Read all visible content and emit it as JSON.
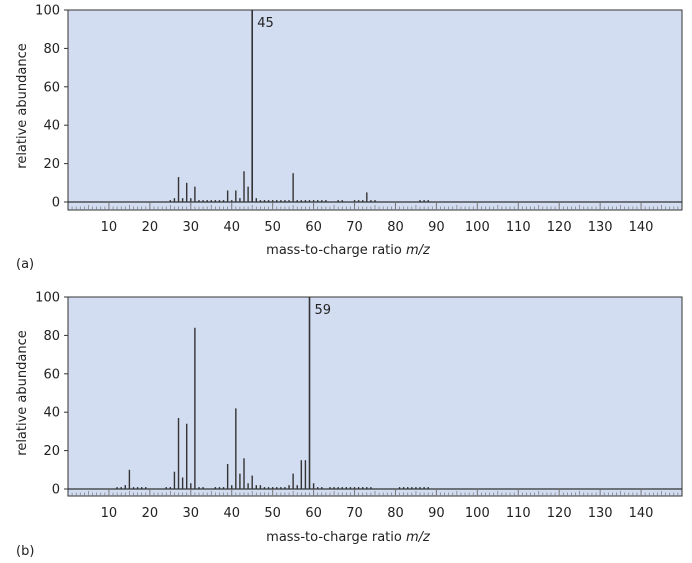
{
  "chart_data": [
    {
      "type": "bar",
      "panel_label": "(a)",
      "ylabel": "relative abundance",
      "xlabel_prefix": "mass-to-charge ratio ",
      "xlabel_var": "m/z",
      "ylim": [
        0,
        100
      ],
      "xlim": [
        0,
        150
      ],
      "y_ticks": [
        "0",
        "20",
        "40",
        "60",
        "80",
        "100"
      ],
      "x_ticks": [
        "10",
        "20",
        "30",
        "40",
        "50",
        "60",
        "70",
        "80",
        "90",
        "100",
        "110",
        "120",
        "130",
        "140"
      ],
      "base_peak_label": "45",
      "base_peak_mz": 45,
      "grid": false,
      "colors": {
        "background": "#d3ddf1",
        "line": "#333333"
      },
      "peaks": [
        {
          "mz": 25,
          "value": 1
        },
        {
          "mz": 26,
          "value": 2
        },
        {
          "mz": 27,
          "value": 13
        },
        {
          "mz": 28,
          "value": 2
        },
        {
          "mz": 29,
          "value": 10
        },
        {
          "mz": 30,
          "value": 2
        },
        {
          "mz": 31,
          "value": 8
        },
        {
          "mz": 32,
          "value": 1
        },
        {
          "mz": 33,
          "value": 1
        },
        {
          "mz": 34,
          "value": 1
        },
        {
          "mz": 35,
          "value": 1
        },
        {
          "mz": 36,
          "value": 1
        },
        {
          "mz": 37,
          "value": 1
        },
        {
          "mz": 38,
          "value": 1
        },
        {
          "mz": 39,
          "value": 6
        },
        {
          "mz": 40,
          "value": 1
        },
        {
          "mz": 41,
          "value": 6
        },
        {
          "mz": 42,
          "value": 2
        },
        {
          "mz": 43,
          "value": 16
        },
        {
          "mz": 44,
          "value": 8
        },
        {
          "mz": 45,
          "value": 100
        },
        {
          "mz": 46,
          "value": 2
        },
        {
          "mz": 47,
          "value": 1
        },
        {
          "mz": 48,
          "value": 1
        },
        {
          "mz": 49,
          "value": 1
        },
        {
          "mz": 50,
          "value": 1
        },
        {
          "mz": 51,
          "value": 1
        },
        {
          "mz": 52,
          "value": 1
        },
        {
          "mz": 53,
          "value": 1
        },
        {
          "mz": 54,
          "value": 1
        },
        {
          "mz": 55,
          "value": 15
        },
        {
          "mz": 56,
          "value": 1
        },
        {
          "mz": 57,
          "value": 1
        },
        {
          "mz": 58,
          "value": 1
        },
        {
          "mz": 59,
          "value": 1
        },
        {
          "mz": 60,
          "value": 1
        },
        {
          "mz": 61,
          "value": 1
        },
        {
          "mz": 62,
          "value": 1
        },
        {
          "mz": 63,
          "value": 1
        },
        {
          "mz": 66,
          "value": 1
        },
        {
          "mz": 67,
          "value": 1
        },
        {
          "mz": 70,
          "value": 1
        },
        {
          "mz": 71,
          "value": 1
        },
        {
          "mz": 72,
          "value": 1
        },
        {
          "mz": 73,
          "value": 5
        },
        {
          "mz": 74,
          "value": 1
        },
        {
          "mz": 75,
          "value": 1
        },
        {
          "mz": 86,
          "value": 1
        },
        {
          "mz": 87,
          "value": 1
        },
        {
          "mz": 88,
          "value": 1
        }
      ]
    },
    {
      "type": "bar",
      "panel_label": "(b)",
      "ylabel": "relative abundance",
      "xlabel_prefix": "mass-to-charge ratio ",
      "xlabel_var": "m/z",
      "ylim": [
        0,
        100
      ],
      "xlim": [
        0,
        150
      ],
      "y_ticks": [
        "0",
        "20",
        "40",
        "60",
        "80",
        "100"
      ],
      "x_ticks": [
        "10",
        "20",
        "30",
        "40",
        "50",
        "60",
        "70",
        "80",
        "90",
        "100",
        "110",
        "120",
        "130",
        "140"
      ],
      "base_peak_label": "59",
      "base_peak_mz": 59,
      "grid": false,
      "colors": {
        "background": "#d3ddf1",
        "line": "#333333"
      },
      "peaks": [
        {
          "mz": 12,
          "value": 1
        },
        {
          "mz": 13,
          "value": 1
        },
        {
          "mz": 14,
          "value": 2
        },
        {
          "mz": 15,
          "value": 10
        },
        {
          "mz": 16,
          "value": 1
        },
        {
          "mz": 17,
          "value": 1
        },
        {
          "mz": 18,
          "value": 1
        },
        {
          "mz": 19,
          "value": 1
        },
        {
          "mz": 24,
          "value": 1
        },
        {
          "mz": 25,
          "value": 1
        },
        {
          "mz": 26,
          "value": 9
        },
        {
          "mz": 27,
          "value": 37
        },
        {
          "mz": 28,
          "value": 6
        },
        {
          "mz": 29,
          "value": 34
        },
        {
          "mz": 30,
          "value": 3
        },
        {
          "mz": 31,
          "value": 84
        },
        {
          "mz": 32,
          "value": 1
        },
        {
          "mz": 33,
          "value": 1
        },
        {
          "mz": 36,
          "value": 1
        },
        {
          "mz": 37,
          "value": 1
        },
        {
          "mz": 38,
          "value": 1
        },
        {
          "mz": 39,
          "value": 13
        },
        {
          "mz": 40,
          "value": 2
        },
        {
          "mz": 41,
          "value": 42
        },
        {
          "mz": 42,
          "value": 8
        },
        {
          "mz": 43,
          "value": 16
        },
        {
          "mz": 44,
          "value": 3
        },
        {
          "mz": 45,
          "value": 7
        },
        {
          "mz": 46,
          "value": 2
        },
        {
          "mz": 47,
          "value": 2
        },
        {
          "mz": 48,
          "value": 1
        },
        {
          "mz": 49,
          "value": 1
        },
        {
          "mz": 50,
          "value": 1
        },
        {
          "mz": 51,
          "value": 1
        },
        {
          "mz": 52,
          "value": 1
        },
        {
          "mz": 53,
          "value": 1
        },
        {
          "mz": 54,
          "value": 2
        },
        {
          "mz": 55,
          "value": 8
        },
        {
          "mz": 56,
          "value": 2
        },
        {
          "mz": 57,
          "value": 15
        },
        {
          "mz": 58,
          "value": 15
        },
        {
          "mz": 59,
          "value": 100
        },
        {
          "mz": 60,
          "value": 3
        },
        {
          "mz": 61,
          "value": 1
        },
        {
          "mz": 62,
          "value": 1
        },
        {
          "mz": 64,
          "value": 1
        },
        {
          "mz": 65,
          "value": 1
        },
        {
          "mz": 66,
          "value": 1
        },
        {
          "mz": 67,
          "value": 1
        },
        {
          "mz": 68,
          "value": 1
        },
        {
          "mz": 69,
          "value": 1
        },
        {
          "mz": 70,
          "value": 1
        },
        {
          "mz": 71,
          "value": 1
        },
        {
          "mz": 72,
          "value": 1
        },
        {
          "mz": 73,
          "value": 1
        },
        {
          "mz": 74,
          "value": 1
        },
        {
          "mz": 81,
          "value": 1
        },
        {
          "mz": 82,
          "value": 1
        },
        {
          "mz": 83,
          "value": 1
        },
        {
          "mz": 84,
          "value": 1
        },
        {
          "mz": 85,
          "value": 1
        },
        {
          "mz": 86,
          "value": 1
        },
        {
          "mz": 87,
          "value": 1
        },
        {
          "mz": 88,
          "value": 1
        }
      ]
    }
  ]
}
